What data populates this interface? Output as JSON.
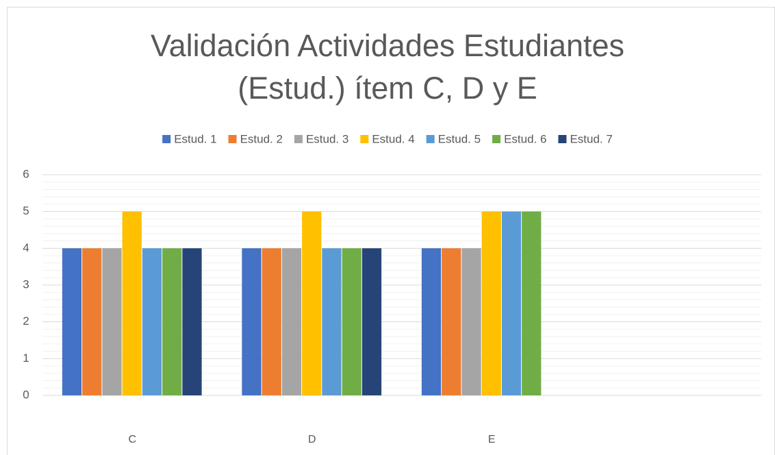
{
  "chart_data": {
    "type": "bar",
    "title": "Validación Actividades Estudiantes (Estud.) ítem C, D y E",
    "categories": [
      "C",
      "D",
      "E",
      null
    ],
    "series": [
      {
        "name": "Estud. 1",
        "color": "#4472c4",
        "values": [
          4,
          4,
          4,
          null
        ]
      },
      {
        "name": "Estud. 2",
        "color": "#ed7d31",
        "values": [
          4,
          4,
          4,
          null
        ]
      },
      {
        "name": "Estud. 3",
        "color": "#a5a5a5",
        "values": [
          4,
          4,
          4,
          null
        ]
      },
      {
        "name": "Estud. 4",
        "color": "#ffc000",
        "values": [
          5,
          5,
          5,
          null
        ]
      },
      {
        "name": "Estud. 5",
        "color": "#5b9bd5",
        "values": [
          4,
          4,
          5,
          null
        ]
      },
      {
        "name": "Estud. 6",
        "color": "#70ad47",
        "values": [
          4,
          4,
          5,
          null
        ]
      },
      {
        "name": "Estud. 7",
        "color": "#264478",
        "values": [
          4,
          4,
          null,
          null
        ]
      }
    ],
    "ylim": [
      0,
      6
    ],
    "yticks": [
      0,
      1,
      2,
      3,
      4,
      5,
      6
    ],
    "grid": true,
    "minor_grid_divisions": 5,
    "legend": "top"
  }
}
